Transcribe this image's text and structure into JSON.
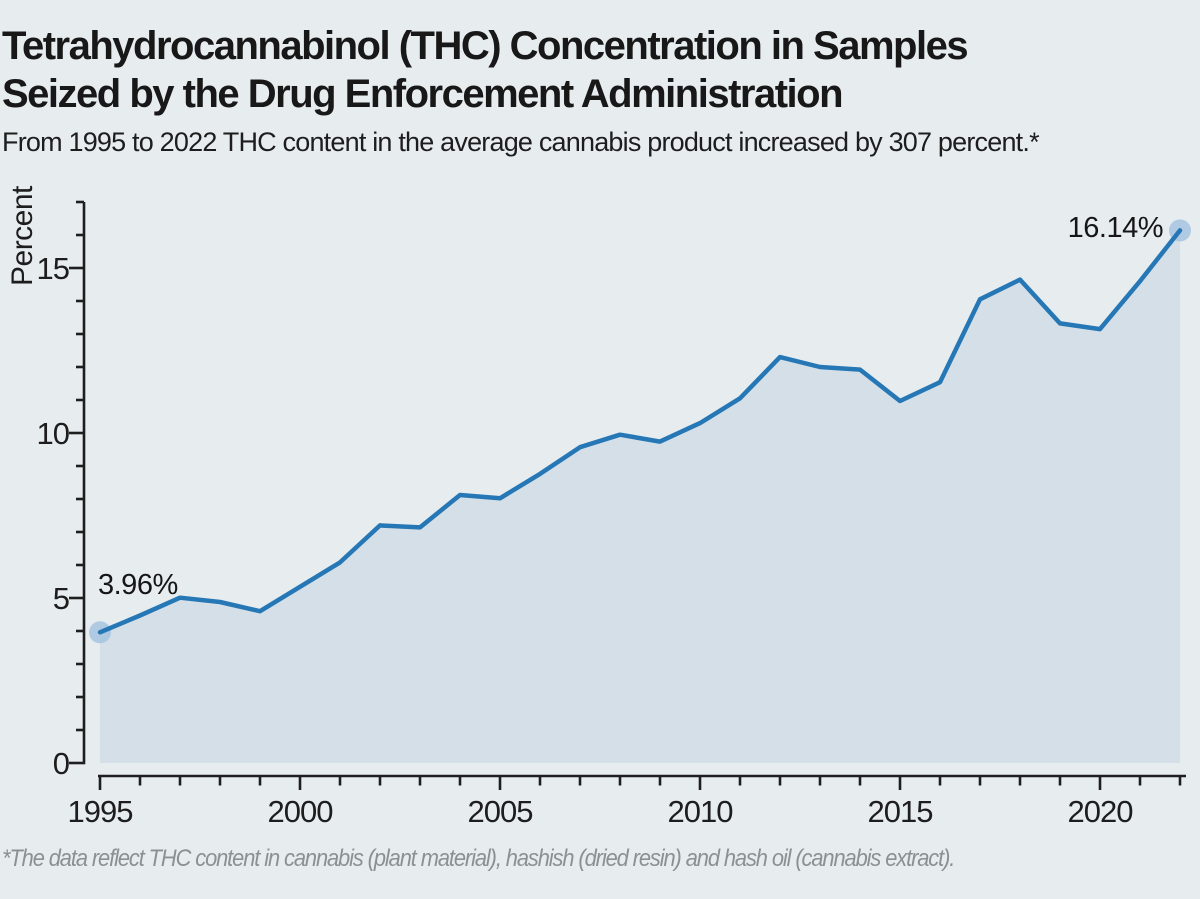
{
  "header": {
    "title_lines": [
      "Tetrahydrocannabinol (THC) Concentration in Samples",
      "Seized by the Drug Enforcement Administration"
    ],
    "subtitle": "From 1995 to 2022 THC content in the average cannabis product increased by 307 percent.*"
  },
  "footnote": "*The data reflect THC content in cannabis (plant material), hashish (dried resin) and hash oil (cannabis extract).",
  "chart_data": {
    "type": "area",
    "title": "Tetrahydrocannabinol (THC) Concentration in Samples Seized by the Drug Enforcement Administration",
    "xlabel": "",
    "ylabel": "Percent",
    "x": [
      1995,
      1996,
      1997,
      1998,
      1999,
      2000,
      2001,
      2002,
      2003,
      2004,
      2005,
      2006,
      2007,
      2008,
      2009,
      2010,
      2011,
      2012,
      2013,
      2014,
      2015,
      2016,
      2017,
      2018,
      2019,
      2020,
      2021,
      2022
    ],
    "values": [
      3.96,
      4.47,
      5.01,
      4.88,
      4.6,
      5.34,
      6.08,
      7.2,
      7.14,
      8.12,
      8.02,
      8.76,
      9.57,
      9.95,
      9.74,
      10.3,
      11.05,
      12.3,
      12.0,
      11.92,
      10.97,
      11.54,
      14.05,
      14.65,
      13.32,
      13.15,
      14.6,
      16.14
    ],
    "x_ticks": [
      1995,
      2000,
      2005,
      2010,
      2015,
      2020
    ],
    "y_ticks": [
      0,
      5,
      10,
      15
    ],
    "xlim": [
      1995,
      2022
    ],
    "ylim": [
      0,
      17
    ],
    "grid": "off",
    "legend": "none",
    "point_labels": {
      "first": "3.96%",
      "last": "16.14%"
    },
    "colors": {
      "background": "#e7ecef",
      "fill": "#d5dfe7",
      "line": "#2677b5",
      "dot": "#a9c7e0",
      "axis": "#1e1e1e",
      "footnote": "#8b9094"
    }
  }
}
